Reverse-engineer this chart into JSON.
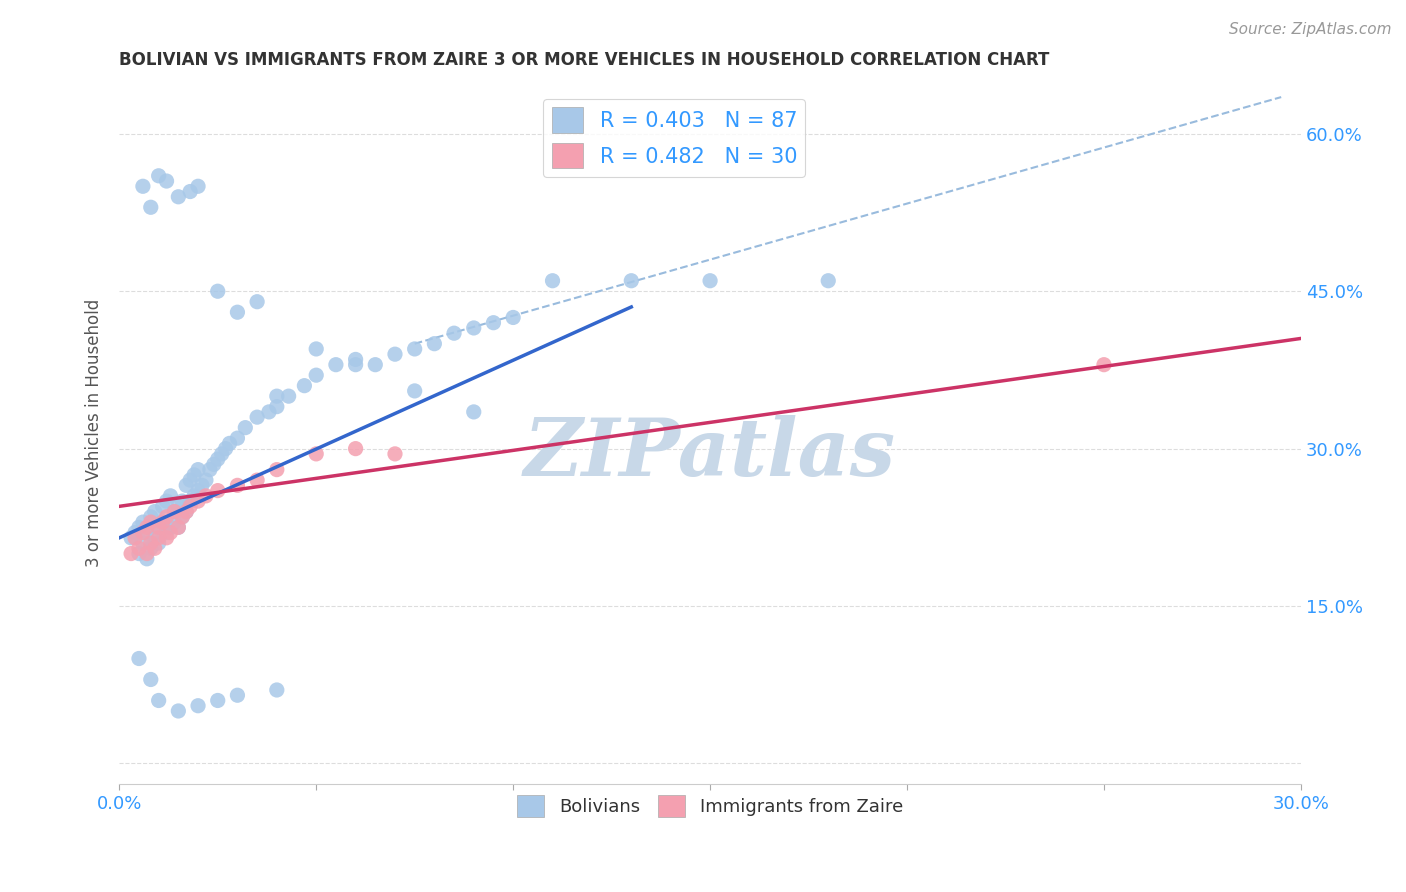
{
  "title": "BOLIVIAN VS IMMIGRANTS FROM ZAIRE 3 OR MORE VEHICLES IN HOUSEHOLD CORRELATION CHART",
  "source_text": "Source: ZipAtlas.com",
  "ylabel": "3 or more Vehicles in Household",
  "xlim": [
    0.0,
    0.3
  ],
  "ylim": [
    -0.02,
    0.65
  ],
  "xtick_pos": [
    0.0,
    0.05,
    0.1,
    0.15,
    0.2,
    0.25,
    0.3
  ],
  "xtick_labels": [
    "0.0%",
    "",
    "",
    "",
    "",
    "",
    "30.0%"
  ],
  "ytick_pos": [
    0.0,
    0.15,
    0.3,
    0.45,
    0.6
  ],
  "ytick_labels": [
    "",
    "15.0%",
    "30.0%",
    "45.0%",
    "60.0%"
  ],
  "legend_label1": "R = 0.403   N = 87",
  "legend_label2": "R = 0.482   N = 30",
  "legend_entry1": "Bolivians",
  "legend_entry2": "Immigrants from Zaire",
  "color_blue_scatter": "#a8c8e8",
  "color_pink_scatter": "#f4a0b0",
  "color_blue_line": "#3366cc",
  "color_pink_line": "#cc3366",
  "color_dashed": "#99bbdd",
  "color_text": "#3399ff",
  "color_title": "#333333",
  "color_ylabel": "#555555",
  "color_source": "#999999",
  "color_grid": "#dddddd",
  "color_legend_text": "#3399ff",
  "watermark_text": "ZIPatlas",
  "watermark_color": "#c8d8e8",
  "blue_line_x": [
    0.0,
    0.13
  ],
  "blue_line_y": [
    0.215,
    0.435
  ],
  "pink_line_x": [
    0.0,
    0.3
  ],
  "pink_line_y": [
    0.245,
    0.405
  ],
  "dash_line_x": [
    0.075,
    0.295
  ],
  "dash_line_y": [
    0.4,
    0.635
  ],
  "blue_scatter_x": [
    0.003,
    0.004,
    0.005,
    0.005,
    0.006,
    0.006,
    0.007,
    0.007,
    0.008,
    0.008,
    0.009,
    0.009,
    0.01,
    0.01,
    0.011,
    0.011,
    0.012,
    0.012,
    0.013,
    0.013,
    0.014,
    0.014,
    0.015,
    0.015,
    0.016,
    0.016,
    0.017,
    0.017,
    0.018,
    0.018,
    0.019,
    0.019,
    0.02,
    0.02,
    0.021,
    0.022,
    0.023,
    0.024,
    0.025,
    0.026,
    0.027,
    0.028,
    0.03,
    0.032,
    0.035,
    0.038,
    0.04,
    0.043,
    0.047,
    0.05,
    0.055,
    0.06,
    0.065,
    0.07,
    0.075,
    0.08,
    0.085,
    0.09,
    0.095,
    0.1,
    0.006,
    0.008,
    0.01,
    0.012,
    0.015,
    0.018,
    0.02,
    0.025,
    0.03,
    0.035,
    0.04,
    0.05,
    0.06,
    0.075,
    0.09,
    0.11,
    0.13,
    0.15,
    0.18,
    0.005,
    0.008,
    0.01,
    0.015,
    0.02,
    0.025,
    0.03,
    0.04
  ],
  "blue_scatter_y": [
    0.215,
    0.22,
    0.2,
    0.225,
    0.21,
    0.23,
    0.195,
    0.22,
    0.205,
    0.235,
    0.215,
    0.24,
    0.21,
    0.225,
    0.23,
    0.245,
    0.22,
    0.25,
    0.225,
    0.255,
    0.23,
    0.24,
    0.225,
    0.245,
    0.235,
    0.25,
    0.24,
    0.265,
    0.25,
    0.27,
    0.255,
    0.275,
    0.26,
    0.28,
    0.265,
    0.27,
    0.28,
    0.285,
    0.29,
    0.295,
    0.3,
    0.305,
    0.31,
    0.32,
    0.33,
    0.335,
    0.34,
    0.35,
    0.36,
    0.37,
    0.38,
    0.385,
    0.38,
    0.39,
    0.395,
    0.4,
    0.41,
    0.415,
    0.42,
    0.425,
    0.55,
    0.53,
    0.56,
    0.555,
    0.54,
    0.545,
    0.55,
    0.45,
    0.43,
    0.44,
    0.35,
    0.395,
    0.38,
    0.355,
    0.335,
    0.46,
    0.46,
    0.46,
    0.46,
    0.1,
    0.08,
    0.06,
    0.05,
    0.055,
    0.06,
    0.065,
    0.07
  ],
  "pink_scatter_x": [
    0.003,
    0.004,
    0.005,
    0.006,
    0.007,
    0.007,
    0.008,
    0.008,
    0.009,
    0.01,
    0.01,
    0.011,
    0.012,
    0.012,
    0.013,
    0.014,
    0.015,
    0.016,
    0.017,
    0.018,
    0.02,
    0.022,
    0.025,
    0.03,
    0.035,
    0.04,
    0.05,
    0.06,
    0.07,
    0.25
  ],
  "pink_scatter_y": [
    0.2,
    0.215,
    0.205,
    0.22,
    0.2,
    0.225,
    0.21,
    0.23,
    0.205,
    0.215,
    0.225,
    0.23,
    0.215,
    0.235,
    0.22,
    0.24,
    0.225,
    0.235,
    0.24,
    0.245,
    0.25,
    0.255,
    0.26,
    0.265,
    0.27,
    0.28,
    0.295,
    0.3,
    0.295,
    0.38
  ]
}
